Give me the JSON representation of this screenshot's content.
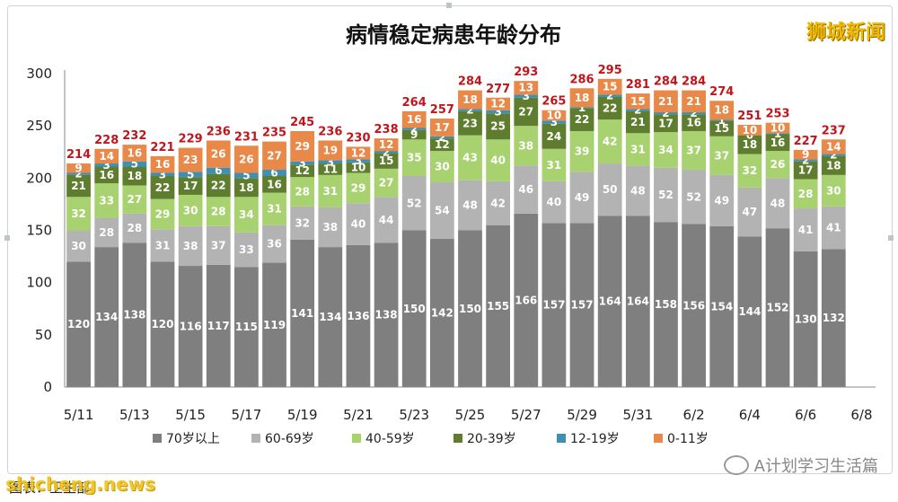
{
  "brand": "狮城新闻",
  "source": "图表：卫生部",
  "watermark_site": "shicheng.news",
  "watermark_account": "A计划学习生活篇",
  "chart_data": {
    "type": "bar",
    "stacked": true,
    "title": "病情稳定病患年龄分布",
    "ylim": [
      0,
      300
    ],
    "yticks": [
      0,
      50,
      100,
      150,
      200,
      250,
      300
    ],
    "xticks": [
      "5/11",
      "5/13",
      "5/15",
      "5/17",
      "5/19",
      "5/21",
      "5/23",
      "5/25",
      "5/27",
      "5/29",
      "5/31",
      "6/2",
      "6/4",
      "6/6",
      "6/8"
    ],
    "categories": [
      "5/11",
      "5/12",
      "5/13",
      "5/14",
      "5/15",
      "5/16",
      "5/17",
      "5/18",
      "5/19",
      "5/20",
      "5/21",
      "5/22",
      "5/23",
      "5/24",
      "5/25",
      "5/26",
      "5/27",
      "5/28",
      "5/29",
      "5/30",
      "5/31",
      "6/1",
      "6/2",
      "6/3",
      "6/4",
      "6/5",
      "6/6",
      "6/7"
    ],
    "series": [
      {
        "name": "70岁以上",
        "color": "#7f7f7f",
        "label_color": "#ffffff",
        "values": [
          120,
          134,
          138,
          120,
          116,
          117,
          115,
          119,
          141,
          134,
          136,
          138,
          150,
          142,
          150,
          155,
          166,
          157,
          157,
          164,
          164,
          158,
          156,
          154,
          144,
          152,
          130,
          132
        ]
      },
      {
        "name": "60-69岁",
        "color": "#b3b3b3",
        "label_color": "#ffffff",
        "values": [
          30,
          28,
          28,
          31,
          38,
          37,
          33,
          36,
          32,
          38,
          40,
          44,
          52,
          54,
          48,
          42,
          46,
          40,
          49,
          50,
          48,
          52,
          52,
          49,
          47,
          48,
          41,
          41
        ]
      },
      {
        "name": "40-59岁",
        "color": "#a8d26f",
        "label_color": "#ffffff",
        "values": [
          32,
          33,
          27,
          29,
          30,
          28,
          34,
          31,
          28,
          31,
          29,
          27,
          35,
          30,
          43,
          40,
          38,
          31,
          39,
          42,
          31,
          34,
          37,
          37,
          32,
          26,
          28,
          30
        ]
      },
      {
        "name": "20-39岁",
        "color": "#5f7d2e",
        "label_color": "#ffffff",
        "values": [
          21,
          16,
          18,
          22,
          17,
          22,
          18,
          16,
          12,
          11,
          10,
          15,
          9,
          12,
          23,
          25,
          27,
          24,
          22,
          22,
          21,
          17,
          16,
          15,
          18,
          16,
          17,
          18
        ]
      },
      {
        "name": "12-19岁",
        "color": "#3f8fb0",
        "label_color": "#ffffff",
        "values": [
          2,
          3,
          5,
          3,
          5,
          6,
          5,
          6,
          3,
          3,
          3,
          2,
          2,
          2,
          2,
          3,
          3,
          3,
          1,
          2,
          2,
          2,
          2,
          1,
          0,
          1,
          2,
          2
        ]
      },
      {
        "name": "0-11岁",
        "color": "#e8894a",
        "label_color": "#ffffff",
        "values": [
          9,
          14,
          16,
          16,
          23,
          26,
          26,
          27,
          29,
          19,
          12,
          12,
          16,
          17,
          18,
          12,
          13,
          10,
          18,
          15,
          15,
          21,
          21,
          18,
          10,
          10,
          9,
          14
        ]
      }
    ],
    "totals": [
      214,
      228,
      232,
      221,
      229,
      236,
      231,
      235,
      245,
      236,
      230,
      238,
      264,
      257,
      284,
      277,
      293,
      265,
      286,
      295,
      281,
      284,
      284,
      274,
      251,
      253,
      227,
      237
    ],
    "grid": false,
    "legend": "bottom"
  }
}
